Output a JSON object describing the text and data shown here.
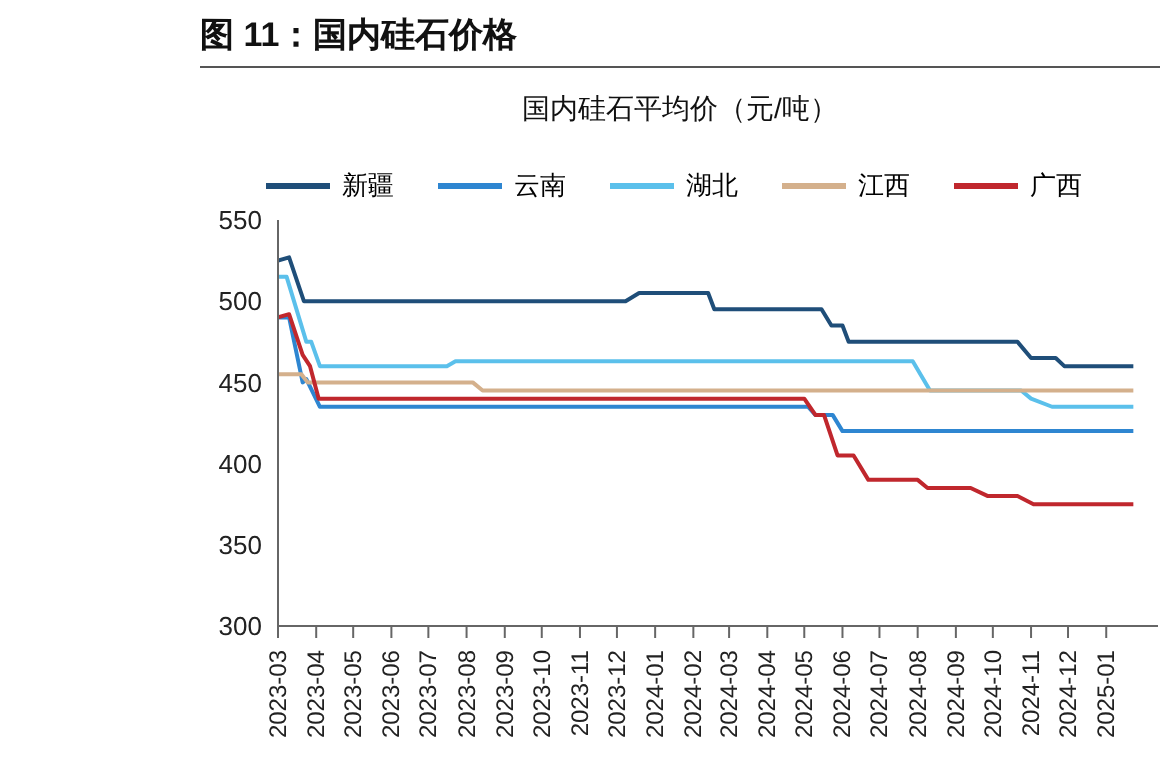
{
  "chart_data": {
    "type": "line",
    "title": "图 11：国内硅石价格",
    "subtitle": "国内硅石平均价（元/吨）",
    "xlim": [
      "2023-03-01",
      "2025-02-12"
    ],
    "xticks": [
      "2023-03",
      "2023-04",
      "2023-05",
      "2023-06",
      "2023-07",
      "2023-08",
      "2023-09",
      "2023-10",
      "2023-11",
      "2023-12",
      "2024-01",
      "2024-02",
      "2024-03",
      "2024-04",
      "2024-05",
      "2024-06",
      "2024-07",
      "2024-08",
      "2024-09",
      "2024-10",
      "2024-11",
      "2024-12",
      "2025-01"
    ],
    "ylim": [
      300,
      550
    ],
    "yticks": [
      300,
      350,
      400,
      450,
      500,
      550
    ],
    "legend": "top",
    "marker": "none",
    "line_style": "solid",
    "series": [
      {
        "name": "新疆",
        "color": "#1f4e79",
        "x": [
          "2023-03-01",
          "2023-03-10",
          "2023-03-22",
          "2023-12-08",
          "2023-12-19",
          "2024-02-13",
          "2024-02-18",
          "2024-05-15",
          "2024-05-23",
          "2024-06-01",
          "2024-06-06",
          "2024-10-21",
          "2024-11-01",
          "2024-11-21",
          "2024-11-28",
          "2025-01-23"
        ],
        "values": [
          525,
          527,
          500,
          500,
          505,
          505,
          495,
          495,
          485,
          485,
          475,
          475,
          465,
          465,
          460,
          460
        ]
      },
      {
        "name": "云南",
        "color": "#2e86d1",
        "x": [
          "2023-03-01",
          "2023-03-10",
          "2023-03-21",
          "2023-03-24",
          "2023-04-04",
          "2024-05-04",
          "2024-05-10",
          "2024-05-24",
          "2024-06-01",
          "2025-01-23"
        ],
        "values": [
          490,
          490,
          450,
          452,
          435,
          435,
          430,
          430,
          420,
          420
        ]
      },
      {
        "name": "湖北",
        "color": "#5bc0eb",
        "x": [
          "2023-03-01",
          "2023-03-08",
          "2023-03-24",
          "2023-03-28",
          "2023-04-04",
          "2023-07-16",
          "2023-07-23",
          "2024-07-28",
          "2024-08-11",
          "2024-10-24",
          "2024-11-01",
          "2024-11-18",
          "2025-01-23"
        ],
        "values": [
          515,
          515,
          475,
          475,
          460,
          460,
          463,
          463,
          445,
          445,
          440,
          435,
          435
        ]
      },
      {
        "name": "江西",
        "color": "#d4b08c",
        "x": [
          "2023-03-01",
          "2023-03-20",
          "2023-03-25",
          "2023-08-06",
          "2023-08-14",
          "2025-01-23"
        ],
        "values": [
          455,
          455,
          450,
          450,
          445,
          445
        ]
      },
      {
        "name": "广西",
        "color": "#c0272d",
        "x": [
          "2023-03-01",
          "2023-03-10",
          "2023-03-21",
          "2023-03-27",
          "2023-04-03",
          "2024-05-01",
          "2024-05-10",
          "2024-05-17",
          "2024-05-28",
          "2024-06-10",
          "2024-06-22",
          "2024-08-01",
          "2024-08-09",
          "2024-09-13",
          "2024-09-27",
          "2024-10-21",
          "2024-11-03",
          "2025-01-23"
        ],
        "values": [
          490,
          492,
          467,
          460,
          440,
          440,
          430,
          430,
          405,
          405,
          390,
          390,
          385,
          385,
          380,
          380,
          375,
          375
        ]
      }
    ]
  }
}
